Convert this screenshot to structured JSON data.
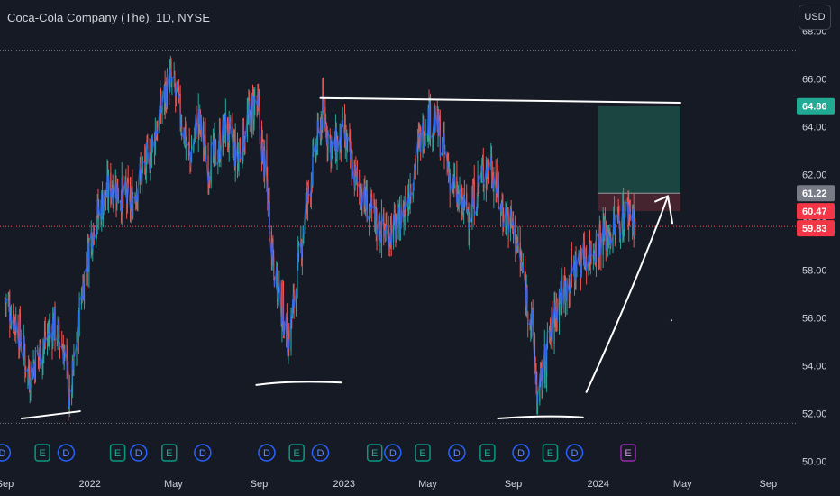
{
  "header": {
    "symbol_title": "Coca-Cola Company (The), 1D, NYSE",
    "currency": "USD"
  },
  "chart_data": {
    "type": "candlestick",
    "y_axis": {
      "ticks": [
        "68.00",
        "66.00",
        "64.00",
        "62.00",
        "60.00",
        "58.00",
        "56.00",
        "54.00",
        "52.00",
        "50.00"
      ],
      "tick_values": [
        68,
        66,
        64,
        62,
        60,
        58,
        56,
        54,
        52,
        50
      ],
      "ylim": [
        49.5,
        69.3
      ]
    },
    "x_axis": {
      "tick_labels": [
        "Sep",
        "2022",
        "May",
        "Sep",
        "2023",
        "May",
        "Sep",
        "2024",
        "May",
        "Sep"
      ],
      "tick_dates": [
        "2021-09-01",
        "2022-01-01",
        "2022-05-01",
        "2022-09-01",
        "2023-01-01",
        "2023-05-01",
        "2023-09-01",
        "2024-01-01",
        "2024-05-01",
        "2024-09-01"
      ],
      "xlim": [
        "2021-08-25",
        "2024-10-12"
      ]
    },
    "series_price_path": [
      [
        "2021-09-01",
        56.8
      ],
      [
        "2021-09-20",
        55.6
      ],
      [
        "2021-10-05",
        53.6
      ],
      [
        "2021-10-25",
        54.8
      ],
      [
        "2021-11-10",
        55.8
      ],
      [
        "2021-11-25",
        54.6
      ],
      [
        "2021-12-03",
        52.4
      ],
      [
        "2021-12-20",
        57.0
      ],
      [
        "2022-01-05",
        59.8
      ],
      [
        "2022-01-20",
        60.9
      ],
      [
        "2022-02-01",
        61.6
      ],
      [
        "2022-02-15",
        61.2
      ],
      [
        "2022-03-01",
        60.8
      ],
      [
        "2022-03-15",
        62.0
      ],
      [
        "2022-03-28",
        62.8
      ],
      [
        "2022-04-12",
        64.6
      ],
      [
        "2022-04-25",
        66.0
      ],
      [
        "2022-05-05",
        65.2
      ],
      [
        "2022-05-15",
        64.0
      ],
      [
        "2022-05-25",
        62.6
      ],
      [
        "2022-06-05",
        64.5
      ],
      [
        "2022-06-20",
        62.4
      ],
      [
        "2022-07-01",
        62.8
      ],
      [
        "2022-07-15",
        64.0
      ],
      [
        "2022-08-01",
        62.6
      ],
      [
        "2022-08-15",
        64.2
      ],
      [
        "2022-08-28",
        65.2
      ],
      [
        "2022-09-10",
        62.0
      ],
      [
        "2022-09-25",
        57.5
      ],
      [
        "2022-10-05",
        56.2
      ],
      [
        "2022-10-13",
        55.0
      ],
      [
        "2022-10-25",
        57.5
      ],
      [
        "2022-11-05",
        60.2
      ],
      [
        "2022-11-20",
        62.8
      ],
      [
        "2022-12-01",
        64.6
      ],
      [
        "2022-12-15",
        63.0
      ],
      [
        "2023-01-01",
        63.6
      ],
      [
        "2023-01-15",
        62.0
      ],
      [
        "2023-02-01",
        60.8
      ],
      [
        "2023-02-15",
        60.0
      ],
      [
        "2023-03-01",
        59.6
      ],
      [
        "2023-03-20",
        59.8
      ],
      [
        "2023-04-05",
        61.4
      ],
      [
        "2023-04-20",
        63.4
      ],
      [
        "2023-05-01",
        64.4
      ],
      [
        "2023-05-15",
        64.0
      ],
      [
        "2023-06-01",
        62.0
      ],
      [
        "2023-06-15",
        60.8
      ],
      [
        "2023-07-01",
        60.4
      ],
      [
        "2023-07-15",
        61.8
      ],
      [
        "2023-07-30",
        62.6
      ],
      [
        "2023-08-15",
        60.6
      ],
      [
        "2023-09-01",
        59.8
      ],
      [
        "2023-09-15",
        57.8
      ],
      [
        "2023-09-28",
        55.6
      ],
      [
        "2023-10-06",
        52.5
      ],
      [
        "2023-10-20",
        54.8
      ],
      [
        "2023-11-05",
        56.8
      ],
      [
        "2023-11-20",
        57.6
      ],
      [
        "2023-12-05",
        58.4
      ],
      [
        "2023-12-20",
        58.8
      ],
      [
        "2024-01-05",
        59.4
      ],
      [
        "2024-01-20",
        59.6
      ],
      [
        "2024-02-05",
        60.2
      ],
      [
        "2024-02-15",
        60.6
      ],
      [
        "2024-02-25",
        59.83
      ]
    ],
    "price_labels": [
      {
        "name": "target",
        "text": "64.86",
        "value": 64.86,
        "color": "#22ab94"
      },
      {
        "name": "entry",
        "text": "61.22",
        "value": 61.22,
        "color": "#787b86"
      },
      {
        "name": "stop",
        "text": "60.47",
        "value": 60.47,
        "color": "#f23645"
      },
      {
        "name": "last-price",
        "text": "59.83",
        "value": 59.83,
        "color": "#f23645"
      }
    ],
    "position_tool": {
      "start": "2024-01-01",
      "end": "2024-04-28",
      "target": 64.86,
      "entry": 61.22,
      "stop": 60.47
    },
    "horizontal_dotted_lines": [
      67.2,
      51.6
    ],
    "events": [
      {
        "type": "D",
        "date": "2021-08-28"
      },
      {
        "type": "E",
        "date": "2021-10-25"
      },
      {
        "type": "D",
        "date": "2021-11-28"
      },
      {
        "type": "E",
        "date": "2022-02-10"
      },
      {
        "type": "D",
        "date": "2022-03-12"
      },
      {
        "type": "E",
        "date": "2022-04-25"
      },
      {
        "type": "D",
        "date": "2022-06-12"
      },
      {
        "type": "D",
        "date": "2022-09-12"
      },
      {
        "type": "E",
        "date": "2022-10-25"
      },
      {
        "type": "D",
        "date": "2022-11-28"
      },
      {
        "type": "E",
        "date": "2023-02-14"
      },
      {
        "type": "D",
        "date": "2023-03-12"
      },
      {
        "type": "E",
        "date": "2023-04-24"
      },
      {
        "type": "D",
        "date": "2023-06-12"
      },
      {
        "type": "E",
        "date": "2023-07-26"
      },
      {
        "type": "D",
        "date": "2023-09-12"
      },
      {
        "type": "E",
        "date": "2023-10-24"
      },
      {
        "type": "D",
        "date": "2023-11-28"
      },
      {
        "type": "E",
        "date": "2024-02-13",
        "upcoming": true
      }
    ],
    "drawn_lines": [
      {
        "name": "top-resistance-line",
        "p": [
          [
            "2022-11-28",
            65.2
          ],
          [
            "2024-04-28",
            65.0
          ]
        ]
      },
      {
        "name": "low-support-line-1",
        "p": [
          [
            "2021-09-25",
            51.8
          ],
          [
            "2021-10-25",
            51.9
          ],
          [
            "2021-12-18",
            52.1
          ]
        ]
      },
      {
        "name": "low-support-line-2",
        "p": [
          [
            "2022-08-28",
            53.2
          ],
          [
            "2022-10-15",
            53.4
          ],
          [
            "2022-12-28",
            53.3
          ]
        ]
      },
      {
        "name": "low-support-line-3",
        "p": [
          [
            "2023-08-10",
            51.8
          ],
          [
            "2023-10-15",
            51.95
          ],
          [
            "2023-12-10",
            51.85
          ]
        ]
      },
      {
        "name": "projection-arrow",
        "p": [
          [
            "2023-12-15",
            52.9
          ],
          [
            "2024-02-25",
            57.5
          ],
          [
            "2024-04-10",
            61.1
          ]
        ]
      }
    ],
    "colors": {
      "background": "#161a25",
      "up": "#26a69a",
      "down": "#ef5350",
      "overlay": "#2962ff",
      "grid_dotted": "#787b86",
      "target_zone": "#1b4a45",
      "stop_zone": "#4a2631",
      "dividend": "#2962ff",
      "earnings": "#089981",
      "earnings_upcoming": "#9c27b0"
    }
  }
}
